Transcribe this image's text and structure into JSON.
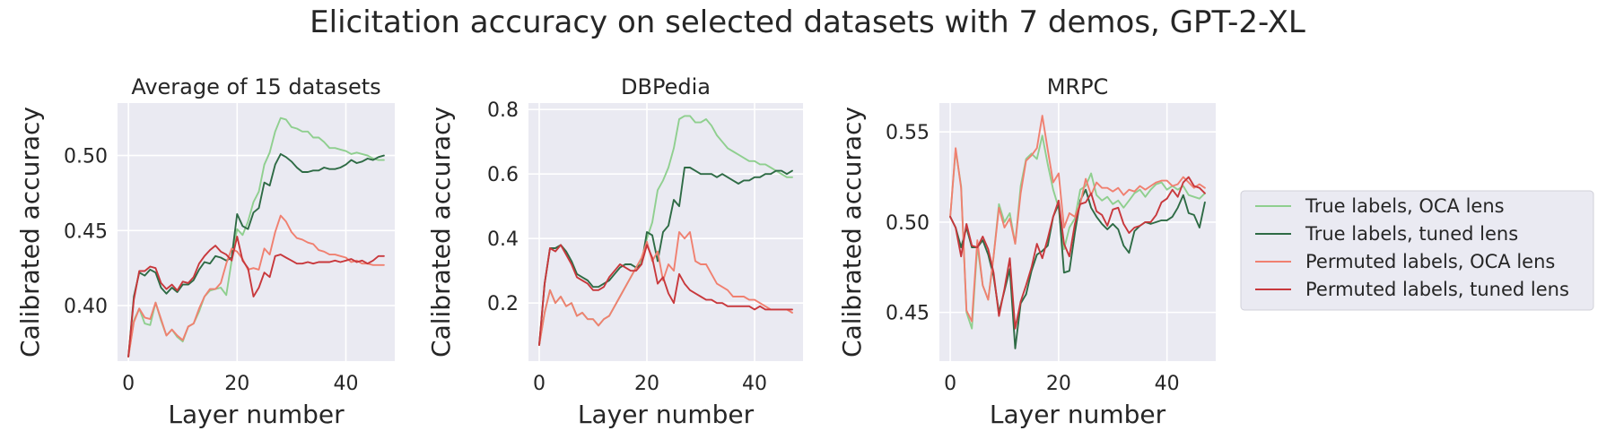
{
  "figure_title": "Elicitation accuracy on selected datasets with 7 demos, GPT-2-XL",
  "legend": {
    "placement": "right",
    "entries": [
      {
        "label": "True labels, OCA lens",
        "color": "#8fcf8f"
      },
      {
        "label": "True labels, tuned lens",
        "color": "#2e6b45"
      },
      {
        "label": "Permuted labels, OCA lens",
        "color": "#f08070"
      },
      {
        "label": "Permuted labels, tuned lens",
        "color": "#c8383c"
      }
    ]
  },
  "chart_data": [
    {
      "type": "line",
      "title": "Average of 15 datasets",
      "xlabel": "Layer number",
      "ylabel": "Calibrated accuracy",
      "xlim": [
        -2,
        49
      ],
      "ylim": [
        0.363,
        0.535
      ],
      "xticks": [
        0,
        20,
        40
      ],
      "xtick_labels": [
        "0",
        "20",
        "40"
      ],
      "yticks": [
        0.4,
        0.45,
        0.5
      ],
      "ytick_labels": [
        "0.40",
        "0.45",
        "0.50"
      ],
      "grid": true,
      "x": [
        0,
        1,
        2,
        3,
        4,
        5,
        6,
        7,
        8,
        9,
        10,
        11,
        12,
        13,
        14,
        15,
        16,
        17,
        18,
        19,
        20,
        21,
        22,
        23,
        24,
        25,
        26,
        27,
        28,
        29,
        30,
        31,
        32,
        33,
        34,
        35,
        36,
        37,
        38,
        39,
        40,
        41,
        42,
        43,
        44,
        45,
        46,
        47
      ],
      "series": [
        {
          "name": "True labels, OCA lens",
          "color": "#8fcf8f",
          "values": [
            0.366,
            0.39,
            0.398,
            0.388,
            0.387,
            0.402,
            0.39,
            0.38,
            0.384,
            0.379,
            0.376,
            0.386,
            0.388,
            0.396,
            0.406,
            0.41,
            0.411,
            0.412,
            0.407,
            0.43,
            0.451,
            0.447,
            0.456,
            0.469,
            0.476,
            0.494,
            0.502,
            0.516,
            0.525,
            0.524,
            0.519,
            0.518,
            0.516,
            0.516,
            0.512,
            0.512,
            0.509,
            0.505,
            0.505,
            0.504,
            0.503,
            0.501,
            0.502,
            0.501,
            0.5,
            0.498,
            0.497,
            0.497
          ]
        },
        {
          "name": "True labels, tuned lens",
          "color": "#2e6b45",
          "values": [
            0.366,
            0.406,
            0.422,
            0.42,
            0.424,
            0.422,
            0.412,
            0.408,
            0.412,
            0.409,
            0.414,
            0.414,
            0.417,
            0.424,
            0.429,
            0.428,
            0.433,
            0.432,
            0.43,
            0.432,
            0.461,
            0.453,
            0.451,
            0.462,
            0.465,
            0.482,
            0.48,
            0.494,
            0.501,
            0.499,
            0.496,
            0.492,
            0.489,
            0.489,
            0.49,
            0.49,
            0.492,
            0.491,
            0.491,
            0.492,
            0.494,
            0.497,
            0.495,
            0.496,
            0.498,
            0.497,
            0.499,
            0.5
          ]
        },
        {
          "name": "Permuted labels, OCA lens",
          "color": "#f08070",
          "values": [
            0.366,
            0.389,
            0.398,
            0.392,
            0.391,
            0.402,
            0.391,
            0.38,
            0.384,
            0.38,
            0.377,
            0.386,
            0.388,
            0.398,
            0.406,
            0.411,
            0.411,
            0.415,
            0.428,
            0.438,
            0.436,
            0.431,
            0.424,
            0.425,
            0.424,
            0.438,
            0.434,
            0.449,
            0.46,
            0.456,
            0.449,
            0.445,
            0.444,
            0.442,
            0.441,
            0.437,
            0.436,
            0.434,
            0.434,
            0.433,
            0.432,
            0.429,
            0.43,
            0.428,
            0.428,
            0.427,
            0.427,
            0.427
          ]
        },
        {
          "name": "Permuted labels, tuned lens",
          "color": "#c8383c",
          "values": [
            0.366,
            0.404,
            0.423,
            0.423,
            0.426,
            0.425,
            0.415,
            0.411,
            0.414,
            0.41,
            0.416,
            0.415,
            0.419,
            0.428,
            0.433,
            0.437,
            0.44,
            0.436,
            0.434,
            0.43,
            0.446,
            0.43,
            0.425,
            0.406,
            0.412,
            0.422,
            0.419,
            0.433,
            0.434,
            0.432,
            0.43,
            0.428,
            0.428,
            0.429,
            0.428,
            0.429,
            0.429,
            0.429,
            0.43,
            0.429,
            0.43,
            0.431,
            0.429,
            0.43,
            0.428,
            0.43,
            0.433,
            0.433
          ]
        }
      ]
    },
    {
      "type": "line",
      "title": "DBPedia",
      "xlabel": "Layer number",
      "ylabel": "Calibrated accuracy",
      "xlim": [
        -2,
        49
      ],
      "ylim": [
        0.02,
        0.82
      ],
      "xticks": [
        0,
        20,
        40
      ],
      "xtick_labels": [
        "0",
        "20",
        "40"
      ],
      "yticks": [
        0.2,
        0.4,
        0.6,
        0.8
      ],
      "ytick_labels": [
        "0.2",
        "0.4",
        "0.6",
        "0.8"
      ],
      "grid": true,
      "x": [
        0,
        1,
        2,
        3,
        4,
        5,
        6,
        7,
        8,
        9,
        10,
        11,
        12,
        13,
        14,
        15,
        16,
        17,
        18,
        19,
        20,
        21,
        22,
        23,
        24,
        25,
        26,
        27,
        28,
        29,
        30,
        31,
        32,
        33,
        34,
        35,
        36,
        37,
        38,
        39,
        40,
        41,
        42,
        43,
        44,
        45,
        46,
        47
      ],
      "series": [
        {
          "name": "True labels, OCA lens",
          "color": "#8fcf8f",
          "values": [
            0.07,
            0.17,
            0.24,
            0.2,
            0.22,
            0.19,
            0.2,
            0.16,
            0.17,
            0.15,
            0.15,
            0.13,
            0.15,
            0.16,
            0.19,
            0.22,
            0.25,
            0.28,
            0.31,
            0.33,
            0.4,
            0.45,
            0.55,
            0.58,
            0.62,
            0.68,
            0.77,
            0.78,
            0.78,
            0.76,
            0.76,
            0.77,
            0.75,
            0.72,
            0.7,
            0.68,
            0.67,
            0.66,
            0.65,
            0.64,
            0.64,
            0.63,
            0.63,
            0.62,
            0.61,
            0.6,
            0.59,
            0.59
          ]
        },
        {
          "name": "True labels, tuned lens",
          "color": "#2e6b45",
          "values": [
            0.07,
            0.26,
            0.37,
            0.37,
            0.38,
            0.36,
            0.33,
            0.29,
            0.28,
            0.27,
            0.25,
            0.25,
            0.26,
            0.27,
            0.29,
            0.31,
            0.32,
            0.32,
            0.31,
            0.32,
            0.42,
            0.41,
            0.33,
            0.42,
            0.44,
            0.52,
            0.5,
            0.62,
            0.62,
            0.61,
            0.6,
            0.6,
            0.6,
            0.59,
            0.6,
            0.59,
            0.58,
            0.57,
            0.58,
            0.58,
            0.59,
            0.59,
            0.6,
            0.6,
            0.61,
            0.61,
            0.6,
            0.61
          ]
        },
        {
          "name": "Permuted labels, OCA lens",
          "color": "#f08070",
          "values": [
            0.07,
            0.17,
            0.24,
            0.2,
            0.22,
            0.19,
            0.2,
            0.16,
            0.17,
            0.15,
            0.15,
            0.13,
            0.15,
            0.16,
            0.19,
            0.22,
            0.25,
            0.28,
            0.31,
            0.34,
            0.39,
            0.33,
            0.36,
            0.27,
            0.32,
            0.3,
            0.42,
            0.4,
            0.42,
            0.33,
            0.32,
            0.32,
            0.29,
            0.26,
            0.25,
            0.24,
            0.22,
            0.22,
            0.22,
            0.21,
            0.21,
            0.2,
            0.19,
            0.18,
            0.18,
            0.18,
            0.18,
            0.17
          ]
        },
        {
          "name": "Permuted labels, tuned lens",
          "color": "#c8383c",
          "values": [
            0.07,
            0.26,
            0.37,
            0.36,
            0.38,
            0.35,
            0.32,
            0.28,
            0.27,
            0.26,
            0.24,
            0.24,
            0.25,
            0.28,
            0.3,
            0.32,
            0.31,
            0.3,
            0.3,
            0.32,
            0.38,
            0.34,
            0.26,
            0.28,
            0.23,
            0.2,
            0.29,
            0.26,
            0.24,
            0.23,
            0.22,
            0.21,
            0.21,
            0.2,
            0.2,
            0.19,
            0.19,
            0.19,
            0.19,
            0.19,
            0.18,
            0.19,
            0.18,
            0.18,
            0.18,
            0.18,
            0.18,
            0.18
          ]
        }
      ]
    },
    {
      "type": "line",
      "title": "MRPC",
      "xlabel": "Layer number",
      "ylabel": "Calibrated accuracy",
      "xlim": [
        -2,
        49
      ],
      "ylim": [
        0.423,
        0.566
      ],
      "xticks": [
        0,
        20,
        40
      ],
      "xtick_labels": [
        "0",
        "20",
        "40"
      ],
      "yticks": [
        0.45,
        0.5,
        0.55
      ],
      "ytick_labels": [
        "0.45",
        "0.50",
        "0.55"
      ],
      "grid": true,
      "x": [
        0,
        1,
        2,
        3,
        4,
        5,
        6,
        7,
        8,
        9,
        10,
        11,
        12,
        13,
        14,
        15,
        16,
        17,
        18,
        19,
        20,
        21,
        22,
        23,
        24,
        25,
        26,
        27,
        28,
        29,
        30,
        31,
        32,
        33,
        34,
        35,
        36,
        37,
        38,
        39,
        40,
        41,
        42,
        43,
        44,
        45,
        46,
        47
      ],
      "series": [
        {
          "name": "True labels, OCA lens",
          "color": "#8fcf8f",
          "values": [
            0.503,
            0.54,
            0.52,
            0.45,
            0.441,
            0.487,
            0.465,
            0.457,
            0.481,
            0.51,
            0.5,
            0.505,
            0.488,
            0.52,
            0.535,
            0.538,
            0.535,
            0.548,
            0.532,
            0.518,
            0.508,
            0.485,
            0.497,
            0.502,
            0.518,
            0.52,
            0.527,
            0.515,
            0.512,
            0.514,
            0.51,
            0.512,
            0.508,
            0.512,
            0.516,
            0.518,
            0.514,
            0.518,
            0.521,
            0.522,
            0.518,
            0.52,
            0.518,
            0.52,
            0.515,
            0.514,
            0.513,
            0.516
          ]
        },
        {
          "name": "True labels, tuned lens",
          "color": "#2e6b45",
          "values": [
            0.503,
            0.497,
            0.486,
            0.497,
            0.486,
            0.486,
            0.49,
            0.482,
            0.47,
            0.45,
            0.462,
            0.474,
            0.43,
            0.455,
            0.46,
            0.473,
            0.482,
            0.484,
            0.487,
            0.503,
            0.51,
            0.472,
            0.473,
            0.494,
            0.512,
            0.518,
            0.508,
            0.503,
            0.499,
            0.496,
            0.499,
            0.496,
            0.487,
            0.483,
            0.495,
            0.498,
            0.5,
            0.499,
            0.5,
            0.501,
            0.501,
            0.503,
            0.508,
            0.515,
            0.505,
            0.504,
            0.497,
            0.511
          ]
        },
        {
          "name": "Permuted labels, OCA lens",
          "color": "#f08070",
          "values": [
            0.503,
            0.541,
            0.519,
            0.451,
            0.445,
            0.49,
            0.465,
            0.457,
            0.481,
            0.508,
            0.497,
            0.502,
            0.488,
            0.516,
            0.534,
            0.537,
            0.541,
            0.559,
            0.54,
            0.522,
            0.527,
            0.497,
            0.505,
            0.503,
            0.51,
            0.524,
            0.515,
            0.522,
            0.519,
            0.519,
            0.517,
            0.519,
            0.515,
            0.518,
            0.517,
            0.52,
            0.518,
            0.52,
            0.522,
            0.523,
            0.523,
            0.52,
            0.521,
            0.525,
            0.522,
            0.519,
            0.521,
            0.519
          ]
        },
        {
          "name": "Permuted labels, tuned lens",
          "color": "#c8383c",
          "values": [
            0.503,
            0.497,
            0.481,
            0.499,
            0.487,
            0.486,
            0.492,
            0.485,
            0.472,
            0.448,
            0.463,
            0.48,
            0.441,
            0.456,
            0.465,
            0.475,
            0.488,
            0.48,
            0.491,
            0.503,
            0.512,
            0.488,
            0.481,
            0.499,
            0.51,
            0.511,
            0.516,
            0.506,
            0.504,
            0.498,
            0.507,
            0.508,
            0.499,
            0.494,
            0.497,
            0.498,
            0.5,
            0.5,
            0.504,
            0.511,
            0.513,
            0.518,
            0.514,
            0.522,
            0.525,
            0.52,
            0.519,
            0.516
          ]
        }
      ]
    }
  ]
}
